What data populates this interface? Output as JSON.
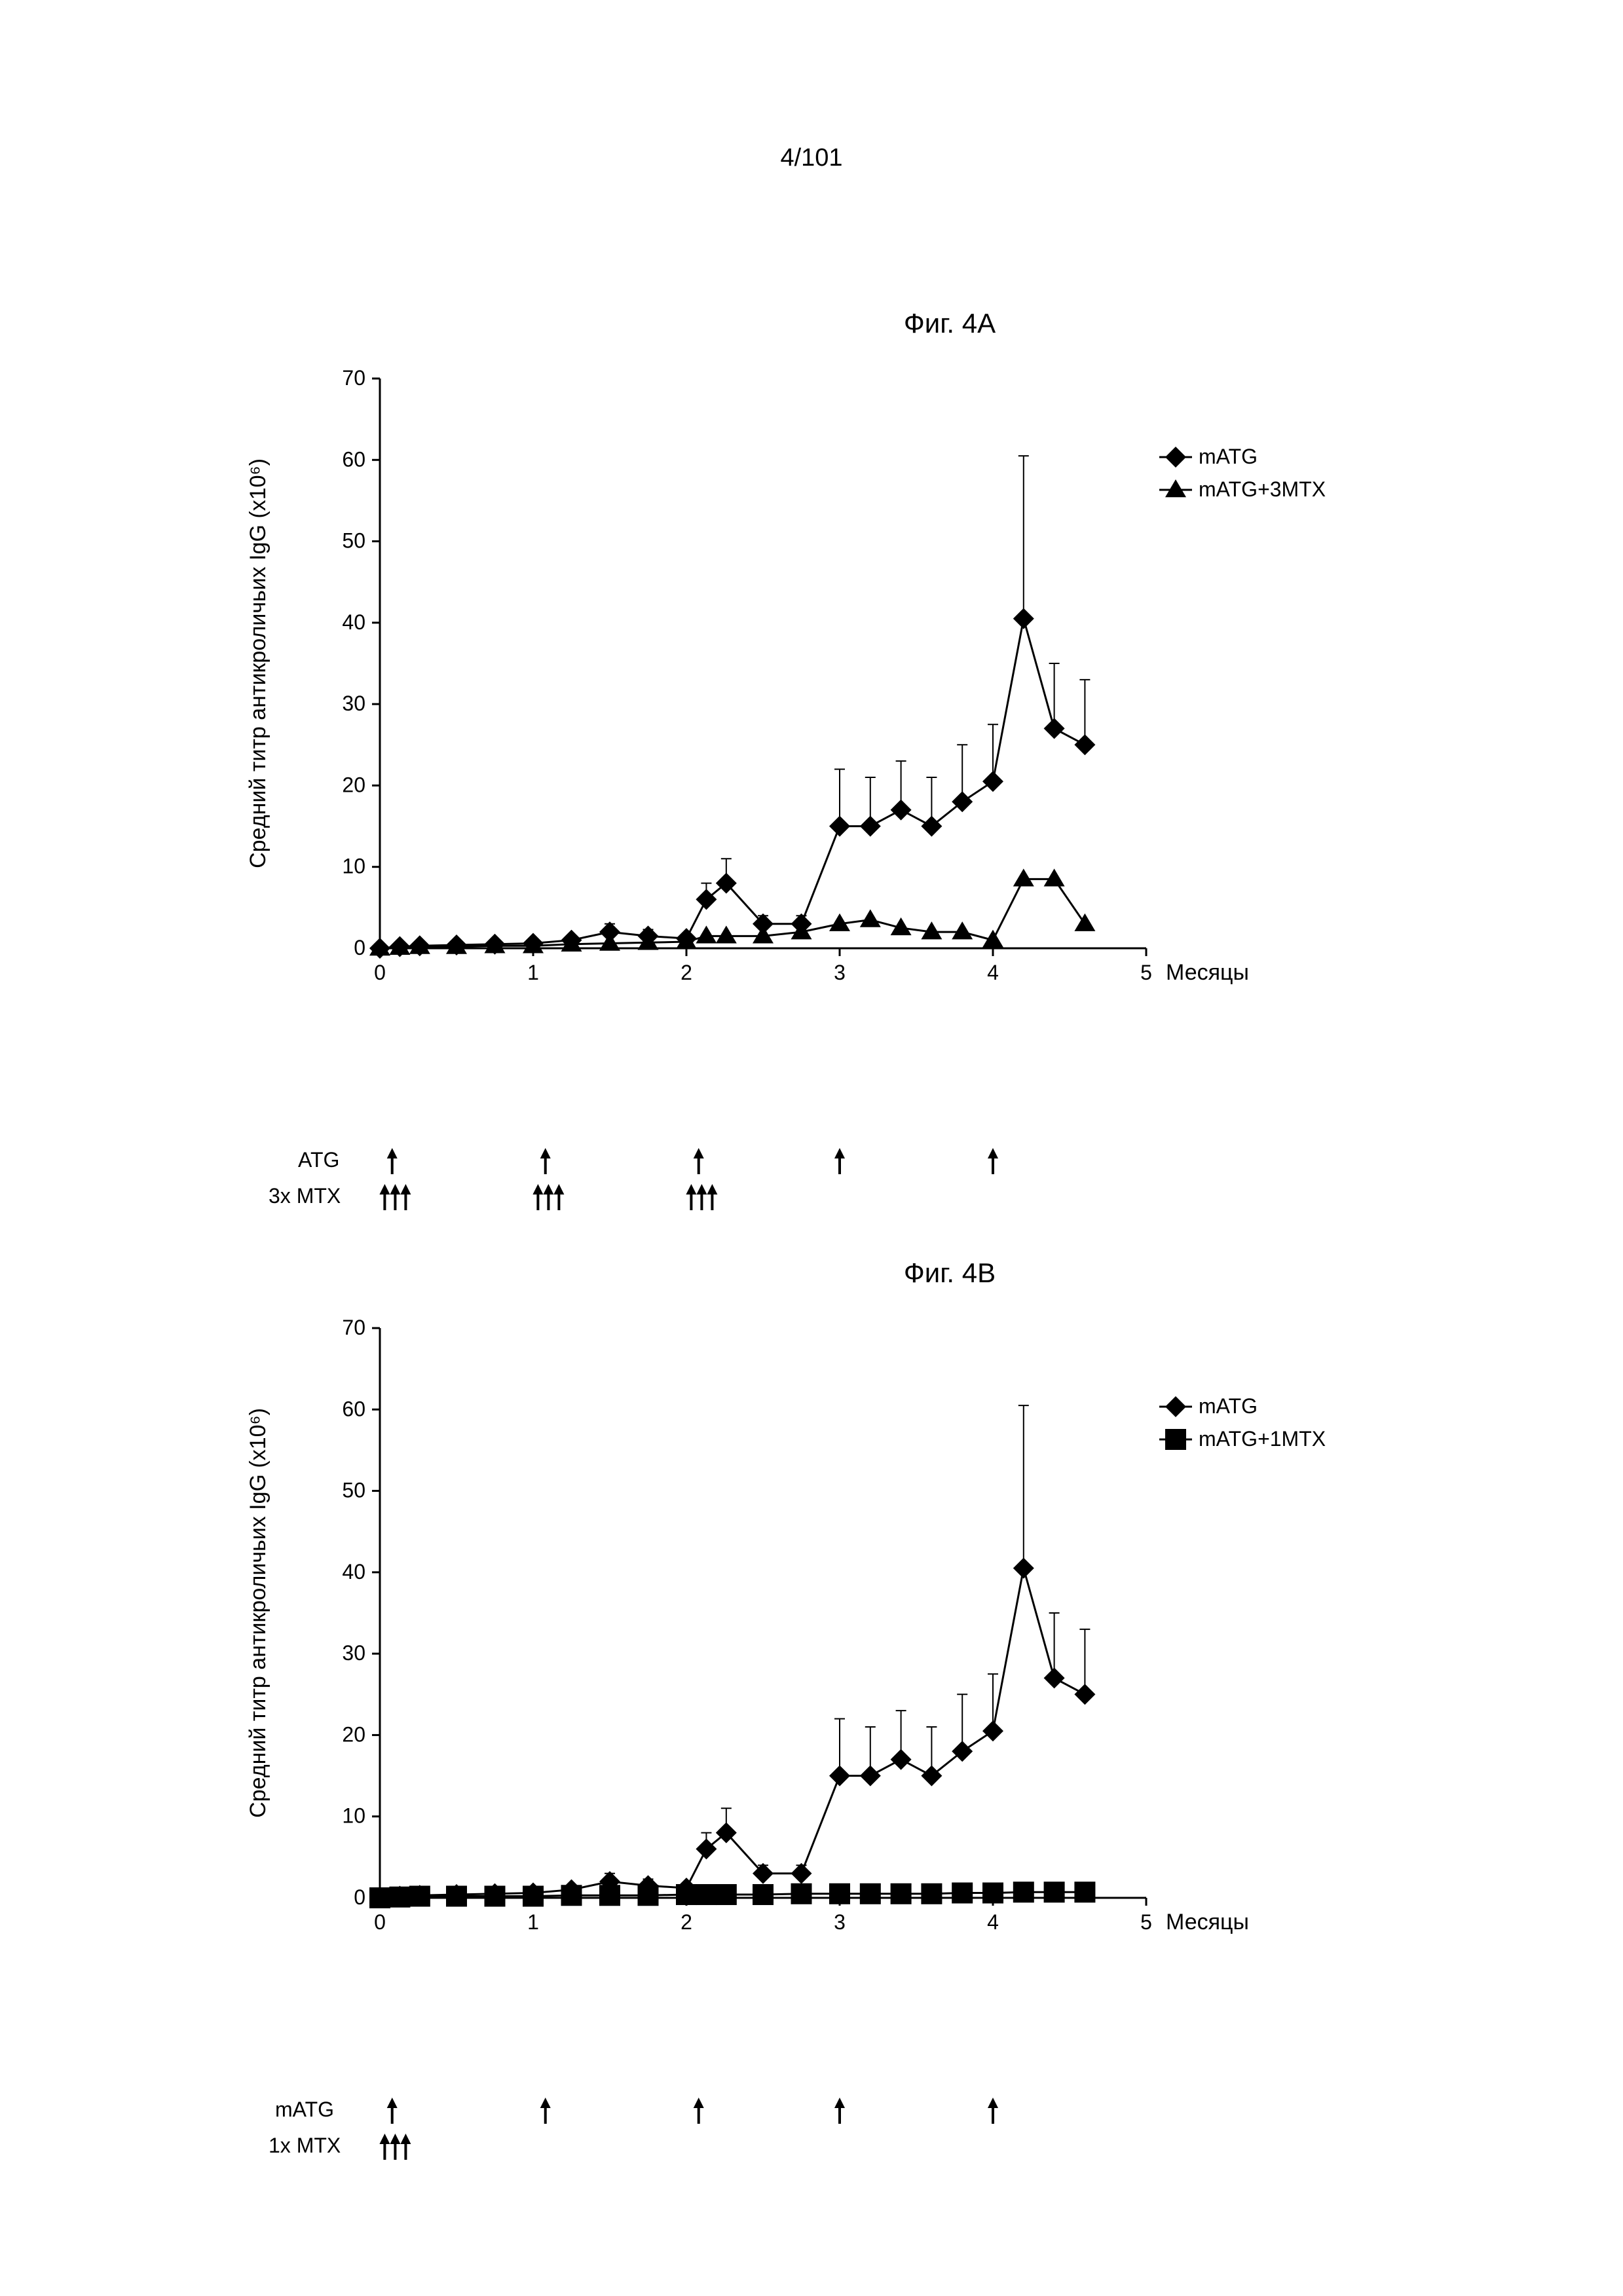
{
  "page_number": "4/101",
  "figA": {
    "title": "Фиг. 4A",
    "type": "line",
    "ylabel": "Средний титр антикроличьих IgG (x10⁶)",
    "xlabel": "Месяцы",
    "ylim": [
      0,
      70
    ],
    "xlim": [
      0,
      5
    ],
    "ytick_step": 10,
    "xtick_step": 1,
    "yticks": [
      0,
      10,
      20,
      30,
      40,
      50,
      60,
      70
    ],
    "xticks": [
      0,
      1,
      2,
      3,
      4,
      5
    ],
    "background_color": "#ffffff",
    "axis_color": "#000000",
    "text_color": "#000000",
    "title_fontsize": 42,
    "label_fontsize": 34,
    "tick_fontsize": 32,
    "legend_fontsize": 32,
    "line_width": 3,
    "marker_size": 16,
    "legend": [
      {
        "label": "mATG",
        "marker": "diamond",
        "color": "#000000"
      },
      {
        "label": "mATG+3MTX",
        "marker": "triangle",
        "color": "#000000"
      }
    ],
    "series": [
      {
        "name": "mATG",
        "marker": "diamond",
        "color": "#000000",
        "x": [
          0,
          0.13,
          0.26,
          0.5,
          0.75,
          1.0,
          1.25,
          1.5,
          1.75,
          2.0,
          2.13,
          2.26,
          2.5,
          2.75,
          3.0,
          3.2,
          3.4,
          3.6,
          3.8,
          4.0,
          4.2,
          4.4,
          4.6
        ],
        "y": [
          0,
          0.2,
          0.3,
          0.4,
          0.5,
          0.6,
          1.0,
          2.0,
          1.5,
          1.2,
          6.0,
          8.0,
          3.0,
          3.0,
          15.0,
          15.0,
          17.0,
          15.0,
          18.0,
          20.5,
          40.5,
          27.0,
          25.0
        ],
        "err": [
          0,
          0,
          0,
          0,
          0,
          0,
          0.5,
          1.0,
          0.8,
          0.5,
          2.0,
          3.0,
          1.0,
          1.0,
          7.0,
          6.0,
          6.0,
          6.0,
          7.0,
          7.0,
          20.0,
          8.0,
          8.0
        ]
      },
      {
        "name": "mATG+3MTX",
        "marker": "triangle",
        "color": "#000000",
        "x": [
          0,
          0.13,
          0.26,
          0.5,
          0.75,
          1.0,
          1.25,
          1.5,
          1.75,
          2.0,
          2.13,
          2.26,
          2.5,
          2.75,
          3.0,
          3.2,
          3.4,
          3.6,
          3.8,
          4.0,
          4.2,
          4.4,
          4.6
        ],
        "y": [
          0,
          0.1,
          0.2,
          0.2,
          0.3,
          0.3,
          0.5,
          0.6,
          0.7,
          0.8,
          1.5,
          1.5,
          1.5,
          2.0,
          3.0,
          3.5,
          2.5,
          2.0,
          2.0,
          1.0,
          8.5,
          8.5,
          3.0
        ],
        "err": [
          0,
          0,
          0,
          0,
          0,
          0,
          0,
          0,
          0,
          0,
          0,
          0,
          0,
          0,
          0,
          0,
          0,
          0,
          0,
          0,
          0,
          0,
          0
        ]
      }
    ],
    "annotations": {
      "atg_label": "ATG",
      "mtx_label": "3x MTX",
      "atg_arrows_x": [
        0.08,
        1.08,
        2.08,
        3.0,
        4.0
      ],
      "mtx_groups_x": [
        0.1,
        1.1,
        2.1
      ]
    }
  },
  "figB": {
    "title": "Фиг. 4B",
    "type": "line",
    "ylabel": "Средний титр антикроличьих IgG (x10⁶)",
    "xlabel": "Месяцы",
    "ylim": [
      0,
      70
    ],
    "xlim": [
      0,
      5
    ],
    "ytick_step": 10,
    "xtick_step": 1,
    "yticks": [
      0,
      10,
      20,
      30,
      40,
      50,
      60,
      70
    ],
    "xticks": [
      0,
      1,
      2,
      3,
      4,
      5
    ],
    "background_color": "#ffffff",
    "axis_color": "#000000",
    "text_color": "#000000",
    "title_fontsize": 42,
    "label_fontsize": 34,
    "tick_fontsize": 32,
    "legend_fontsize": 32,
    "line_width": 3,
    "marker_size": 16,
    "legend": [
      {
        "label": "mATG",
        "marker": "diamond",
        "color": "#000000"
      },
      {
        "label": "mATG+1MTX",
        "marker": "square",
        "color": "#000000"
      }
    ],
    "series": [
      {
        "name": "mATG",
        "marker": "diamond",
        "color": "#000000",
        "x": [
          0,
          0.13,
          0.26,
          0.5,
          0.75,
          1.0,
          1.25,
          1.5,
          1.75,
          2.0,
          2.13,
          2.26,
          2.5,
          2.75,
          3.0,
          3.2,
          3.4,
          3.6,
          3.8,
          4.0,
          4.2,
          4.4,
          4.6
        ],
        "y": [
          0,
          0.2,
          0.3,
          0.4,
          0.5,
          0.6,
          1.0,
          2.0,
          1.5,
          1.2,
          6.0,
          8.0,
          3.0,
          3.0,
          15.0,
          15.0,
          17.0,
          15.0,
          18.0,
          20.5,
          40.5,
          27.0,
          25.0
        ],
        "err": [
          0,
          0,
          0,
          0,
          0,
          0,
          0.5,
          1.0,
          0.8,
          0.5,
          2.0,
          3.0,
          1.0,
          1.0,
          7.0,
          6.0,
          6.0,
          6.0,
          7.0,
          7.0,
          20.0,
          8.0,
          8.0
        ]
      },
      {
        "name": "mATG+1MTX",
        "marker": "square",
        "color": "#000000",
        "x": [
          0,
          0.13,
          0.26,
          0.5,
          0.75,
          1.0,
          1.25,
          1.5,
          1.75,
          2.0,
          2.13,
          2.26,
          2.5,
          2.75,
          3.0,
          3.2,
          3.4,
          3.6,
          3.8,
          4.0,
          4.2,
          4.4,
          4.6
        ],
        "y": [
          0,
          0.1,
          0.2,
          0.2,
          0.2,
          0.2,
          0.3,
          0.3,
          0.3,
          0.4,
          0.4,
          0.4,
          0.4,
          0.5,
          0.5,
          0.5,
          0.5,
          0.5,
          0.6,
          0.6,
          0.7,
          0.7,
          0.7
        ],
        "err": [
          0,
          0,
          0,
          0,
          0,
          0,
          0,
          0,
          0,
          0,
          0,
          0,
          0,
          0,
          0,
          0,
          0,
          0,
          0,
          0,
          0,
          0,
          0
        ]
      }
    ],
    "annotations": {
      "atg_label": "mATG",
      "mtx_label": "1x MTX",
      "atg_arrows_x": [
        0.08,
        1.08,
        2.08,
        3.0,
        4.0
      ],
      "mtx_groups_x": [
        0.1
      ]
    }
  }
}
